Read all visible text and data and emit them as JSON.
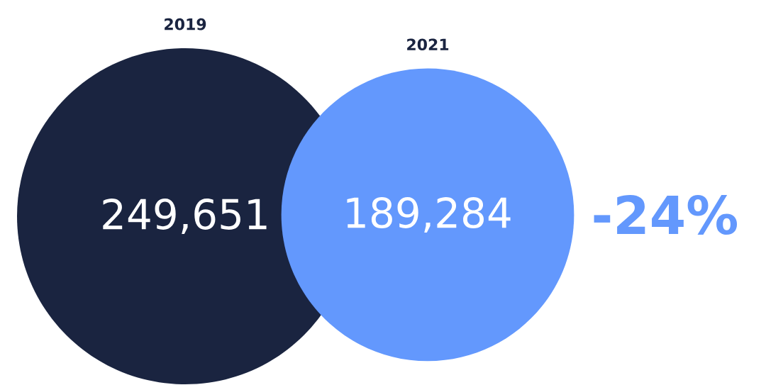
{
  "chart_data": {
    "type": "other",
    "categories": [
      "2019",
      "2021"
    ],
    "values": [
      249651,
      189284
    ],
    "value_labels": [
      "249,651",
      "189,284"
    ],
    "colors": [
      "#1a2440",
      "#6398fd"
    ],
    "annotations": [
      "-24%"
    ]
  }
}
